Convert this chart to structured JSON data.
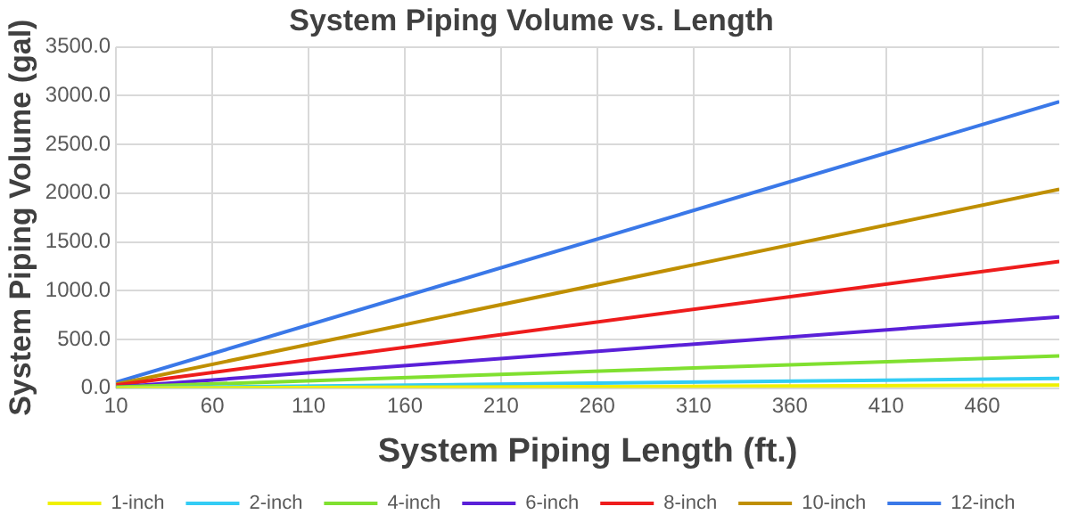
{
  "chart_data": {
    "type": "line",
    "title": "System Piping Volume vs. Length",
    "xlabel": "System Piping Length (ft.)",
    "ylabel": "System Piping Volume (gal)",
    "xlim": [
      10,
      500
    ],
    "xticks": [
      10,
      60,
      110,
      160,
      210,
      260,
      310,
      360,
      410,
      460
    ],
    "ylim": [
      0,
      3500
    ],
    "yticks": [
      {
        "value": 0,
        "label": "0.0"
      },
      {
        "value": 500,
        "label": "500.0"
      },
      {
        "value": 1000,
        "label": "1000.0"
      },
      {
        "value": 1500,
        "label": "1500.0"
      },
      {
        "value": 2000,
        "label": "2000.0"
      },
      {
        "value": 2500,
        "label": "2500.0"
      },
      {
        "value": 3000,
        "label": "3000.0"
      },
      {
        "value": 3500,
        "label": "3500.0"
      }
    ],
    "x": [
      10,
      500
    ],
    "series": [
      {
        "name": "1-inch",
        "color": "#f0f000",
        "values": [
          0,
          30
        ]
      },
      {
        "name": "2-inch",
        "color": "#33ccf5",
        "values": [
          0,
          100
        ]
      },
      {
        "name": "4-inch",
        "color": "#80e030",
        "values": [
          10,
          330
        ]
      },
      {
        "name": "6-inch",
        "color": "#5a20d8",
        "values": [
          10,
          730
        ]
      },
      {
        "name": "8-inch",
        "color": "#ee1c1c",
        "values": [
          30,
          1300
        ]
      },
      {
        "name": "10-inch",
        "color": "#bf8f00",
        "values": [
          40,
          2040
        ]
      },
      {
        "name": "12-inch",
        "color": "#3a78e8",
        "values": [
          60,
          2940
        ]
      }
    ],
    "grid": true,
    "legend": "bottom",
    "marker": "none",
    "line_style": "solid"
  }
}
